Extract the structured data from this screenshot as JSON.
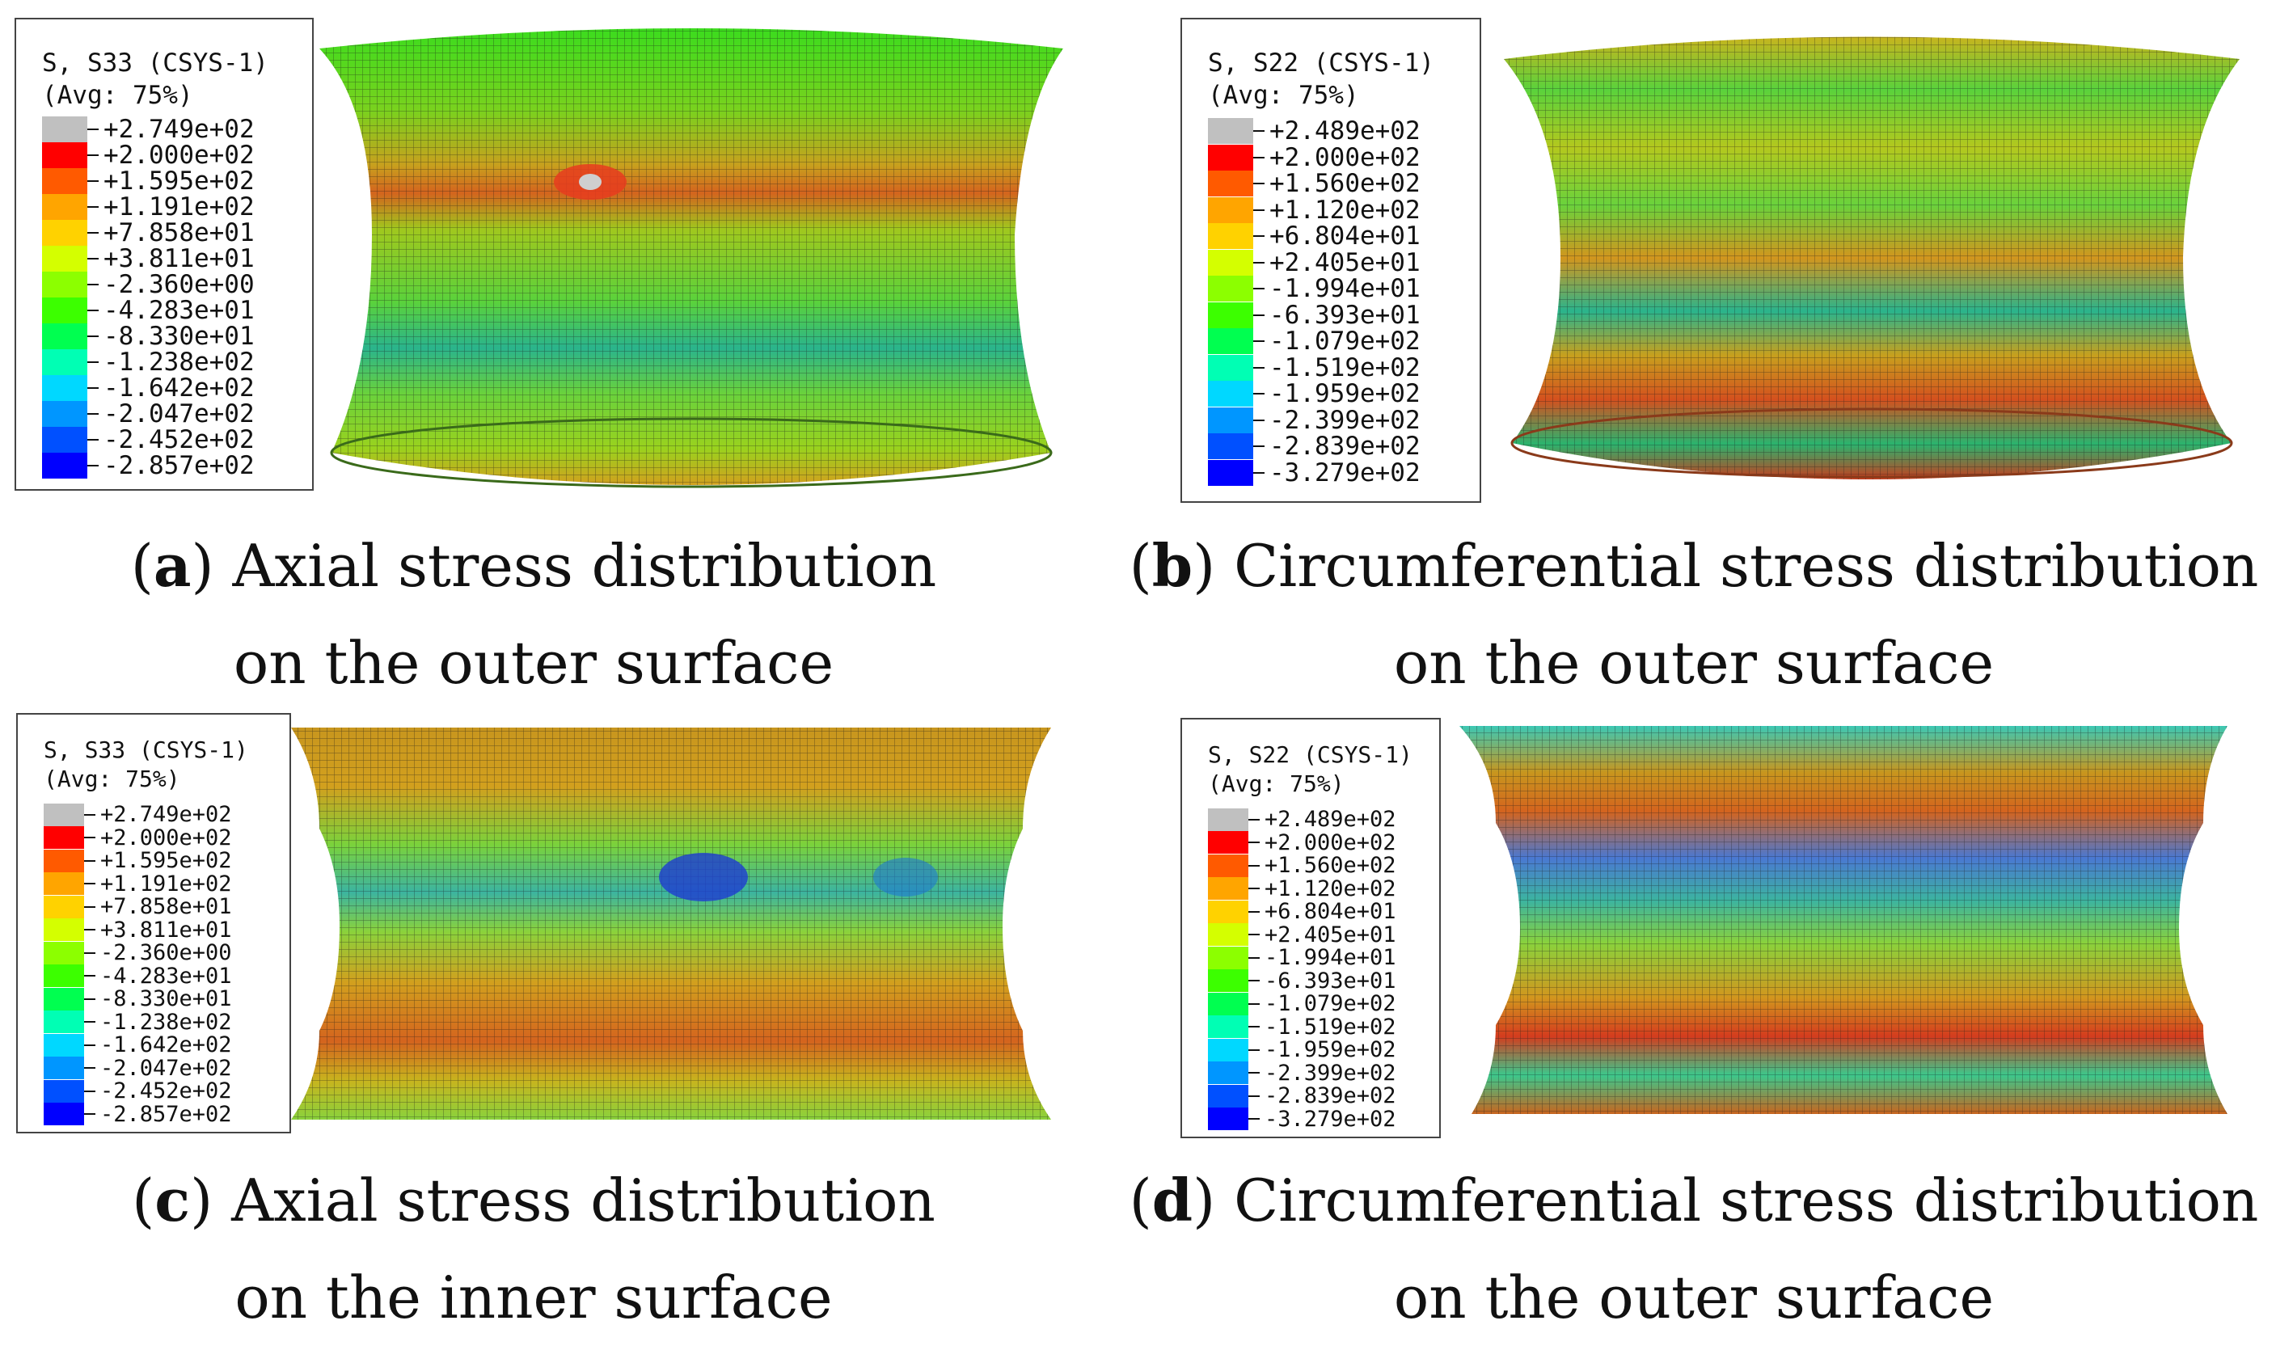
{
  "panels": [
    {
      "id": "a",
      "legend": {
        "line1": "S, S33 (CSYS-1)",
        "line2": "(Avg: 75%)",
        "values": [
          "+2.749e+02",
          "+2.000e+02",
          "+1.595e+02",
          "+1.191e+02",
          "+7.858e+01",
          "+3.811e+01",
          "-2.360e+00",
          "-4.283e+01",
          "-8.330e+01",
          "-1.238e+02",
          "-1.642e+02",
          "-2.047e+02",
          "-2.452e+02",
          "-2.857e+02"
        ]
      },
      "caption": {
        "letter": "a",
        "line1": "Axial stress distribution",
        "line2": "on the outer surface"
      }
    },
    {
      "id": "b",
      "legend": {
        "line1": "S, S22 (CSYS-1)",
        "line2": "(Avg: 75%)",
        "values": [
          "+2.489e+02",
          "+2.000e+02",
          "+1.560e+02",
          "+1.120e+02",
          "+6.804e+01",
          "+2.405e+01",
          "-1.994e+01",
          "-6.393e+01",
          "-1.079e+02",
          "-1.519e+02",
          "-1.959e+02",
          "-2.399e+02",
          "-2.839e+02",
          "-3.279e+02"
        ]
      },
      "caption": {
        "letter": "b",
        "line1": "Circumferential stress distribution",
        "line2": "on the outer surface"
      }
    },
    {
      "id": "c",
      "legend": {
        "line1": "S, S33 (CSYS-1)",
        "line2": "(Avg: 75%)",
        "values": [
          "+2.749e+02",
          "+2.000e+02",
          "+1.595e+02",
          "+1.191e+02",
          "+7.858e+01",
          "+3.811e+01",
          "-2.360e+00",
          "-4.283e+01",
          "-8.330e+01",
          "-1.238e+02",
          "-1.642e+02",
          "-2.047e+02",
          "-2.452e+02",
          "-2.857e+02"
        ]
      },
      "caption": {
        "letter": "c",
        "line1": "Axial stress distribution",
        "line2": "on the inner surface"
      }
    },
    {
      "id": "d",
      "legend": {
        "line1": "S, S22 (CSYS-1)",
        "line2": "(Avg: 75%)",
        "values": [
          "+2.489e+02",
          "+2.000e+02",
          "+1.560e+02",
          "+1.120e+02",
          "+6.804e+01",
          "+2.405e+01",
          "-1.994e+01",
          "-6.393e+01",
          "-1.079e+02",
          "-1.519e+02",
          "-1.959e+02",
          "-2.399e+02",
          "-2.839e+02",
          "-3.279e+02"
        ]
      },
      "caption": {
        "letter": "d",
        "line1": "Circumferential stress distribution",
        "line2": "on the outer surface"
      }
    }
  ],
  "colors": {
    "scale": [
      "#c0c0c0",
      "#ff0000",
      "#ff5a00",
      "#ffa500",
      "#ffd200",
      "#d4ff00",
      "#8cff00",
      "#3cff00",
      "#00ff50",
      "#00ffb4",
      "#00d8ff",
      "#0096ff",
      "#0050ff",
      "#0000ff"
    ],
    "mesh_line": "#1a1a1a"
  }
}
